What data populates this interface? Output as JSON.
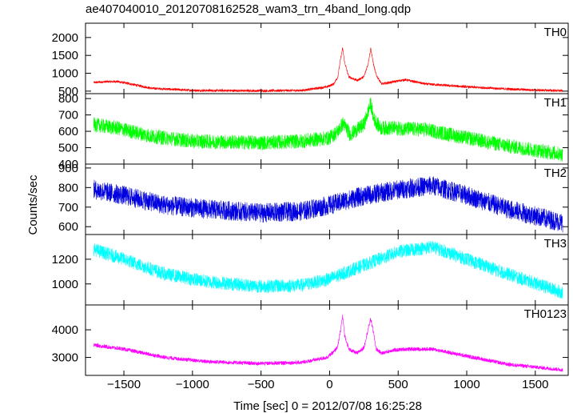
{
  "chart_data": {
    "type": "line",
    "title": "ae407040010_20120708162528_wam3_trn_4band_long.qdp",
    "xlabel": "Time [sec] 0 = 2012/07/08 16:25:28",
    "ylabel": "Counts/sec",
    "xlim": [
      -1780,
      1740
    ],
    "xticks": [
      -1500,
      -1000,
      -500,
      0,
      500,
      1000,
      1500
    ],
    "xtick_labels": [
      "−1500",
      "−1000",
      "−500",
      "0",
      "500",
      "1000",
      "1500"
    ],
    "series": [
      {
        "name": "TH0",
        "color": "#ff0000",
        "ylim": [
          430,
          2400
        ],
        "yticks": [
          500,
          1000,
          1500,
          2000
        ],
        "yticklabels": [
          "500",
          "1000",
          "1500",
          "2000"
        ],
        "noise": 35,
        "x": [
          -1720,
          -1650,
          -1550,
          -1450,
          -1300,
          -1000,
          -500,
          -200,
          -20,
          30,
          60,
          80,
          95,
          110,
          140,
          200,
          250,
          280,
          300,
          320,
          340,
          380,
          450,
          550,
          700,
          1000,
          1300,
          1500,
          1700
        ],
        "y": [
          740,
          760,
          770,
          700,
          580,
          520,
          510,
          520,
          620,
          700,
          900,
          1400,
          1700,
          1300,
          900,
          800,
          900,
          1250,
          1700,
          1250,
          950,
          700,
          750,
          820,
          700,
          620,
          560,
          530,
          510
        ]
      },
      {
        "name": "TH1",
        "color": "#00ff00",
        "ylim": [
          400,
          830
        ],
        "yticks": [
          400,
          500,
          600,
          700,
          800
        ],
        "yticklabels": [
          "400",
          "500",
          "600",
          "700",
          "800"
        ],
        "noise": 45,
        "x": [
          -1720,
          -1550,
          -1300,
          -1000,
          -500,
          -200,
          0,
          60,
          100,
          150,
          250,
          300,
          320,
          370,
          450,
          700,
          1000,
          1300,
          1700
        ],
        "y": [
          640,
          620,
          570,
          540,
          530,
          540,
          560,
          600,
          650,
          580,
          640,
          770,
          680,
          620,
          620,
          610,
          560,
          510,
          460
        ]
      },
      {
        "name": "TH2",
        "color": "#0000e0",
        "ylim": [
          560,
          920
        ],
        "yticks": [
          600,
          700,
          800,
          900
        ],
        "yticklabels": [
          "600",
          "700",
          "800",
          "900"
        ],
        "noise": 50,
        "x": [
          -1720,
          -1500,
          -1200,
          -900,
          -500,
          -200,
          0,
          200,
          500,
          750,
          1000,
          1300,
          1700
        ],
        "y": [
          790,
          760,
          710,
          690,
          670,
          680,
          710,
          750,
          790,
          810,
          760,
          690,
          620
        ]
      },
      {
        "name": "TH3",
        "color": "#00ffff",
        "ylim": [
          830,
          1400
        ],
        "yticks": [
          1000,
          1200
        ],
        "yticklabels": [
          "1000",
          "1200"
        ],
        "noise": 55,
        "x": [
          -1720,
          -1500,
          -1200,
          -900,
          -500,
          -200,
          0,
          200,
          500,
          750,
          1000,
          1300,
          1700
        ],
        "y": [
          1280,
          1200,
          1080,
          1020,
          980,
          990,
          1040,
          1130,
          1260,
          1300,
          1200,
          1080,
          930
        ]
      },
      {
        "name": "TH0123",
        "color": "#ff00ff",
        "ylim": [
          2350,
          4900
        ],
        "yticks": [
          3000,
          4000
        ],
        "yticklabels": [
          "3000",
          "4000"
        ],
        "noise": 70,
        "x": [
          -1720,
          -1500,
          -1200,
          -900,
          -500,
          -200,
          -20,
          30,
          60,
          80,
          95,
          110,
          140,
          200,
          250,
          280,
          300,
          320,
          340,
          380,
          450,
          550,
          750,
          1000,
          1300,
          1700
        ],
        "y": [
          3450,
          3300,
          3000,
          2850,
          2780,
          2820,
          3000,
          3200,
          3400,
          4000,
          4500,
          3800,
          3300,
          3150,
          3350,
          4000,
          4400,
          3900,
          3300,
          3150,
          3250,
          3300,
          3300,
          3050,
          2750,
          2550
        ]
      }
    ]
  }
}
